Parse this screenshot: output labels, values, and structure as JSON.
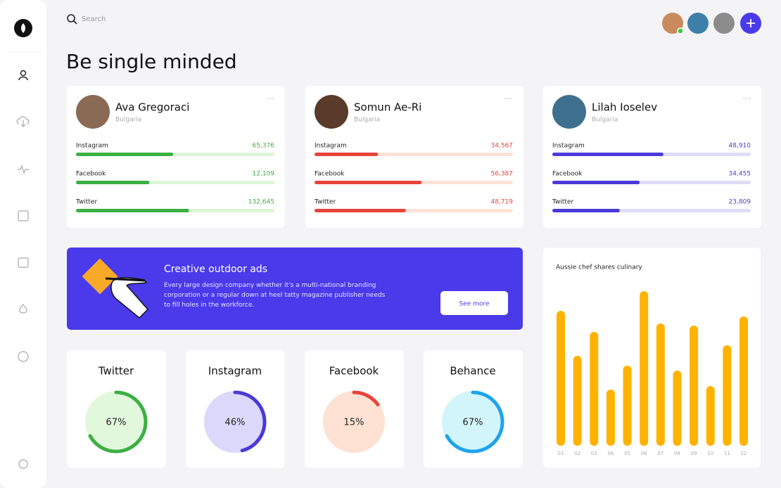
{
  "search": {
    "placeholder": "Search"
  },
  "header": {
    "title": "Be single minded"
  },
  "profiles": [
    {
      "name": "Ava Gregoraci",
      "country": "Bulgaria",
      "color": "#3cb043",
      "track": "#dcf6d7",
      "avatar": "#8a6a55",
      "stats": [
        {
          "label": "Instagram",
          "count": "65,376",
          "progress": 49
        },
        {
          "label": "Facebook",
          "count": "12,109",
          "progress": 37
        },
        {
          "label": "Twitter",
          "count": "132,645",
          "progress": 57
        }
      ]
    },
    {
      "name": "Somun Ae-Ri",
      "country": "Bulgaria",
      "color": "#e8443a",
      "track": "#fde3d6",
      "avatar": "#5a3a28",
      "stats": [
        {
          "label": "Instagram",
          "count": "34,567",
          "progress": 32
        },
        {
          "label": "Facebook",
          "count": "56,387",
          "progress": 54
        },
        {
          "label": "Twitter",
          "count": "48,719",
          "progress": 46
        }
      ]
    },
    {
      "name": "Lilah Ioselev",
      "country": "Bulgaria",
      "color": "#4a3ad8",
      "track": "#dedcf7",
      "avatar": "#3f6f8f",
      "stats": [
        {
          "label": "Instagram",
          "count": "48,910",
          "progress": 56
        },
        {
          "label": "Facebook",
          "count": "34,455",
          "progress": 44
        },
        {
          "label": "Twitter",
          "count": "23,809",
          "progress": 34
        }
      ]
    }
  ],
  "banner": {
    "title": "Creative outdoor ads",
    "text": "Every large design company whether it's a multi-national branding corporation or a regular down at heel tatty magazine publisher needs to fill holes in the workforce.",
    "button": "See more"
  },
  "donuts": [
    {
      "label": "Twitter",
      "percent": 67,
      "percent_label": "67%",
      "color": "#3cb043",
      "fill": "#e2f8dd"
    },
    {
      "label": "Instagram",
      "percent": 46,
      "percent_label": "46%",
      "color": "#4a3ad8",
      "fill": "#dcd8fb"
    },
    {
      "label": "Facebook",
      "percent": 15,
      "percent_label": "15%",
      "color": "#e8443a",
      "fill": "#fde1d2"
    },
    {
      "label": "Behance",
      "percent": 67,
      "percent_label": "67%",
      "color": "#1ea4ec",
      "fill": "#d2f5fb"
    }
  ],
  "chart_data": {
    "type": "bar",
    "title": "Aussie chef shares culinary",
    "categories": [
      "01",
      "02",
      "03",
      "04",
      "05",
      "06",
      "07",
      "08",
      "09",
      "10",
      "11",
      "12"
    ],
    "values": [
      192,
      128,
      162,
      80,
      114,
      220,
      174,
      107,
      171,
      85,
      143,
      184
    ],
    "ylim": [
      0,
      230
    ],
    "color": "#ffb300"
  }
}
